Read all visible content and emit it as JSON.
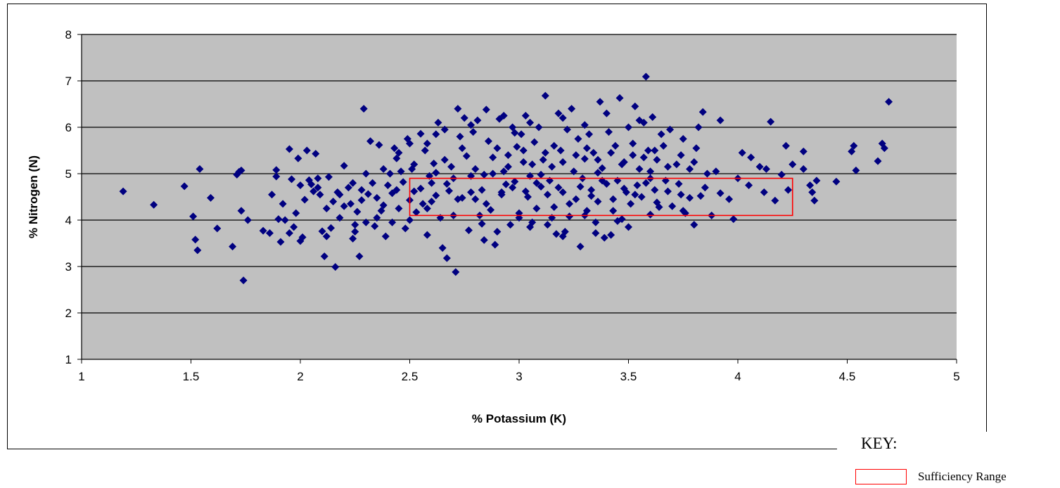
{
  "chart_data": {
    "type": "scatter",
    "xlabel": "% Potassium (K)",
    "ylabel": "% Nitrogen (N)",
    "xlim": [
      1,
      5
    ],
    "ylim": [
      1,
      8
    ],
    "x_ticks": [
      "1",
      "1.5",
      "2",
      "2.5",
      "3",
      "3.5",
      "4",
      "4.5",
      "5"
    ],
    "y_ticks": [
      "1",
      "2",
      "3",
      "4",
      "5",
      "6",
      "7",
      "8"
    ],
    "grid": "horizontal",
    "plot_background": "#c0c0c0",
    "marker_color": "#000080",
    "marker_shape": "diamond",
    "sufficiency_range": {
      "x": [
        2.5,
        4.25
      ],
      "y": [
        4.1,
        4.9
      ],
      "color": "#ff0000"
    },
    "points": [
      [
        1.19,
        4.62
      ],
      [
        1.33,
        4.33
      ],
      [
        1.47,
        4.73
      ],
      [
        1.51,
        4.08
      ],
      [
        1.52,
        3.58
      ],
      [
        1.53,
        3.35
      ],
      [
        1.54,
        5.1
      ],
      [
        1.59,
        4.48
      ],
      [
        1.62,
        3.82
      ],
      [
        1.69,
        3.43
      ],
      [
        1.71,
        4.98
      ],
      [
        1.72,
        5.04
      ],
      [
        1.73,
        4.2
      ],
      [
        1.73,
        5.07
      ],
      [
        1.74,
        2.7
      ],
      [
        1.76,
        4.0
      ],
      [
        1.83,
        3.77
      ],
      [
        1.86,
        3.72
      ],
      [
        1.87,
        4.55
      ],
      [
        1.89,
        4.94
      ],
      [
        1.89,
        5.08
      ],
      [
        1.9,
        4.02
      ],
      [
        1.91,
        3.53
      ],
      [
        1.92,
        4.35
      ],
      [
        1.93,
        4.0
      ],
      [
        1.95,
        5.53
      ],
      [
        1.96,
        4.88
      ],
      [
        1.97,
        3.85
      ],
      [
        1.98,
        4.15
      ],
      [
        1.99,
        5.33
      ],
      [
        2.0,
        3.55
      ],
      [
        2.01,
        3.63
      ],
      [
        2.02,
        4.44
      ],
      [
        2.03,
        5.5
      ],
      [
        2.04,
        4.86
      ],
      [
        2.05,
        4.77
      ],
      [
        2.06,
        4.62
      ],
      [
        2.07,
        5.43
      ],
      [
        2.08,
        4.7
      ],
      [
        2.09,
        4.55
      ],
      [
        2.1,
        3.76
      ],
      [
        2.11,
        3.22
      ],
      [
        2.12,
        4.25
      ],
      [
        2.13,
        4.93
      ],
      [
        2.14,
        3.83
      ],
      [
        2.15,
        4.4
      ],
      [
        2.16,
        2.99
      ],
      [
        2.17,
        4.6
      ],
      [
        2.18,
        4.05
      ],
      [
        2.2,
        5.17
      ],
      [
        2.22,
        4.7
      ],
      [
        2.23,
        4.35
      ],
      [
        2.24,
        3.6
      ],
      [
        2.25,
        3.75
      ],
      [
        2.26,
        4.18
      ],
      [
        2.27,
        3.22
      ],
      [
        2.28,
        4.43
      ],
      [
        2.29,
        6.4
      ],
      [
        2.3,
        3.95
      ],
      [
        2.31,
        4.56
      ],
      [
        2.32,
        5.7
      ],
      [
        2.33,
        4.8
      ],
      [
        2.34,
        3.87
      ],
      [
        2.35,
        4.48
      ],
      [
        2.36,
        5.62
      ],
      [
        2.37,
        4.2
      ],
      [
        2.38,
        4.32
      ],
      [
        2.39,
        3.65
      ],
      [
        2.4,
        4.75
      ],
      [
        2.41,
        5.0
      ],
      [
        2.42,
        4.58
      ],
      [
        2.43,
        5.55
      ],
      [
        2.44,
        5.33
      ],
      [
        2.45,
        4.25
      ],
      [
        2.46,
        5.05
      ],
      [
        2.47,
        4.82
      ],
      [
        2.48,
        3.82
      ],
      [
        2.49,
        5.75
      ],
      [
        2.5,
        4.43
      ],
      [
        2.51,
        5.1
      ],
      [
        2.52,
        4.62
      ],
      [
        2.53,
        4.17
      ],
      [
        2.55,
        5.86
      ],
      [
        2.56,
        4.35
      ],
      [
        2.57,
        5.5
      ],
      [
        2.58,
        3.68
      ],
      [
        2.59,
        4.95
      ],
      [
        2.6,
        4.8
      ],
      [
        2.61,
        5.22
      ],
      [
        2.62,
        4.53
      ],
      [
        2.63,
        6.1
      ],
      [
        2.64,
        4.05
      ],
      [
        2.65,
        3.4
      ],
      [
        2.66,
        5.95
      ],
      [
        2.67,
        3.18
      ],
      [
        2.68,
        4.63
      ],
      [
        2.69,
        5.15
      ],
      [
        2.7,
        4.9
      ],
      [
        2.71,
        2.88
      ],
      [
        2.72,
        6.4
      ],
      [
        2.73,
        5.8
      ],
      [
        2.74,
        4.48
      ],
      [
        2.75,
        6.2
      ],
      [
        2.76,
        5.38
      ],
      [
        2.77,
        3.78
      ],
      [
        2.78,
        4.95
      ],
      [
        2.79,
        5.9
      ],
      [
        2.8,
        4.45
      ],
      [
        2.81,
        6.15
      ],
      [
        2.82,
        4.1
      ],
      [
        2.83,
        4.65
      ],
      [
        2.84,
        3.57
      ],
      [
        2.85,
        6.38
      ],
      [
        2.86,
        5.7
      ],
      [
        2.87,
        4.22
      ],
      [
        2.88,
        5.0
      ],
      [
        2.89,
        3.47
      ],
      [
        2.9,
        5.55
      ],
      [
        2.91,
        6.18
      ],
      [
        2.92,
        4.6
      ],
      [
        2.93,
        5.05
      ],
      [
        2.94,
        4.77
      ],
      [
        2.95,
        5.4
      ],
      [
        2.96,
        3.9
      ],
      [
        2.97,
        6.0
      ],
      [
        2.98,
        4.83
      ],
      [
        2.99,
        5.58
      ],
      [
        3.0,
        4.05
      ],
      [
        3.01,
        5.85
      ],
      [
        3.02,
        5.25
      ],
      [
        3.03,
        6.25
      ],
      [
        3.04,
        4.5
      ],
      [
        3.05,
        4.95
      ],
      [
        3.06,
        3.95
      ],
      [
        3.07,
        5.68
      ],
      [
        3.08,
        4.25
      ],
      [
        3.09,
        6.0
      ],
      [
        3.1,
        4.72
      ],
      [
        3.11,
        5.3
      ],
      [
        3.12,
        6.68
      ],
      [
        3.13,
        3.9
      ],
      [
        3.14,
        4.85
      ],
      [
        3.15,
        5.15
      ],
      [
        3.16,
        4.28
      ],
      [
        3.17,
        3.7
      ],
      [
        3.18,
        6.3
      ],
      [
        3.19,
        5.5
      ],
      [
        3.2,
        4.6
      ],
      [
        3.21,
        3.75
      ],
      [
        3.22,
        5.95
      ],
      [
        3.23,
        4.08
      ],
      [
        3.24,
        6.4
      ],
      [
        3.25,
        5.05
      ],
      [
        3.26,
        4.45
      ],
      [
        3.27,
        5.75
      ],
      [
        3.28,
        3.43
      ],
      [
        3.29,
        4.9
      ],
      [
        3.3,
        5.32
      ],
      [
        3.31,
        4.2
      ],
      [
        3.32,
        5.85
      ],
      [
        3.33,
        4.65
      ],
      [
        3.34,
        5.45
      ],
      [
        3.35,
        3.95
      ],
      [
        3.36,
        4.4
      ],
      [
        3.37,
        6.55
      ],
      [
        3.38,
        5.12
      ],
      [
        3.39,
        3.62
      ],
      [
        3.4,
        4.78
      ],
      [
        3.41,
        5.9
      ],
      [
        3.42,
        3.68
      ],
      [
        3.43,
        4.2
      ],
      [
        3.44,
        5.6
      ],
      [
        3.45,
        4.85
      ],
      [
        3.46,
        6.63
      ],
      [
        3.47,
        4.02
      ],
      [
        3.48,
        5.25
      ],
      [
        3.49,
        4.6
      ],
      [
        3.5,
        6.0
      ],
      [
        3.51,
        4.35
      ],
      [
        3.52,
        5.4
      ],
      [
        3.53,
        6.45
      ],
      [
        3.54,
        4.75
      ],
      [
        3.55,
        5.1
      ],
      [
        3.56,
        4.5
      ],
      [
        3.57,
        6.1
      ],
      [
        3.58,
        7.09
      ],
      [
        3.59,
        5.5
      ],
      [
        3.6,
        4.9
      ],
      [
        3.61,
        6.22
      ],
      [
        3.62,
        4.65
      ],
      [
        3.63,
        5.3
      ],
      [
        3.64,
        4.28
      ],
      [
        3.66,
        5.6
      ],
      [
        3.67,
        4.85
      ],
      [
        3.69,
        5.95
      ],
      [
        3.7,
        4.3
      ],
      [
        3.72,
        5.2
      ],
      [
        3.74,
        4.55
      ],
      [
        3.75,
        5.75
      ],
      [
        3.76,
        4.15
      ],
      [
        3.78,
        5.1
      ],
      [
        3.8,
        3.9
      ],
      [
        3.81,
        5.55
      ],
      [
        3.82,
        6.0
      ],
      [
        3.83,
        4.52
      ],
      [
        3.84,
        6.33
      ],
      [
        3.86,
        5.0
      ],
      [
        3.88,
        4.1
      ],
      [
        3.92,
        6.15
      ],
      [
        3.96,
        4.45
      ],
      [
        3.98,
        4.02
      ],
      [
        4.0,
        4.9
      ],
      [
        4.02,
        5.45
      ],
      [
        4.06,
        5.35
      ],
      [
        4.1,
        5.15
      ],
      [
        4.13,
        5.1
      ],
      [
        4.15,
        6.12
      ],
      [
        4.17,
        4.42
      ],
      [
        4.2,
        4.98
      ],
      [
        4.22,
        5.6
      ],
      [
        4.23,
        4.65
      ],
      [
        4.25,
        5.2
      ],
      [
        4.3,
        5.48
      ],
      [
        4.3,
        5.1
      ],
      [
        4.33,
        4.75
      ],
      [
        4.34,
        4.6
      ],
      [
        4.35,
        4.42
      ],
      [
        4.36,
        4.85
      ],
      [
        4.45,
        4.83
      ],
      [
        4.52,
        5.48
      ],
      [
        4.53,
        5.6
      ],
      [
        4.54,
        5.07
      ],
      [
        4.64,
        5.27
      ],
      [
        4.66,
        5.65
      ],
      [
        4.67,
        5.55
      ],
      [
        4.69,
        6.55
      ],
      [
        2.55,
        4.68
      ],
      [
        2.6,
        4.4
      ],
      [
        2.67,
        4.78
      ],
      [
        2.72,
        4.45
      ],
      [
        2.78,
        4.6
      ],
      [
        2.85,
        4.35
      ],
      [
        2.92,
        4.55
      ],
      [
        2.97,
        4.7
      ],
      [
        3.03,
        4.62
      ],
      [
        3.08,
        4.8
      ],
      [
        3.13,
        4.55
      ],
      [
        3.18,
        4.7
      ],
      [
        3.23,
        4.35
      ],
      [
        3.28,
        4.72
      ],
      [
        3.33,
        4.52
      ],
      [
        3.38,
        4.85
      ],
      [
        3.43,
        4.45
      ],
      [
        3.48,
        4.68
      ],
      [
        3.53,
        4.55
      ],
      [
        3.58,
        4.8
      ],
      [
        3.63,
        4.38
      ],
      [
        3.68,
        4.62
      ],
      [
        3.73,
        4.78
      ],
      [
        3.78,
        4.48
      ],
      [
        3.85,
        4.7
      ],
      [
        3.92,
        4.58
      ],
      [
        4.05,
        4.75
      ],
      [
        4.12,
        4.6
      ],
      [
        2.45,
        5.45
      ],
      [
        2.52,
        5.2
      ],
      [
        2.58,
        5.65
      ],
      [
        2.66,
        5.3
      ],
      [
        2.74,
        5.55
      ],
      [
        2.8,
        5.1
      ],
      [
        2.88,
        5.35
      ],
      [
        2.95,
        5.15
      ],
      [
        3.02,
        5.5
      ],
      [
        3.06,
        5.2
      ],
      [
        3.12,
        5.45
      ],
      [
        3.16,
        5.6
      ],
      [
        3.2,
        5.25
      ],
      [
        3.26,
        5.4
      ],
      [
        3.31,
        5.55
      ],
      [
        3.36,
        5.3
      ],
      [
        3.42,
        5.45
      ],
      [
        3.47,
        5.2
      ],
      [
        3.52,
        5.65
      ],
      [
        3.57,
        5.35
      ],
      [
        3.62,
        5.5
      ],
      [
        3.68,
        5.15
      ],
      [
        3.74,
        5.4
      ],
      [
        3.8,
        5.25
      ],
      [
        2.38,
        5.1
      ],
      [
        2.3,
        5.0
      ],
      [
        2.24,
        4.8
      ],
      [
        2.18,
        4.55
      ],
      [
        2.08,
        4.9
      ],
      [
        2.0,
        4.75
      ],
      [
        2.35,
        4.05
      ],
      [
        2.42,
        3.95
      ],
      [
        2.5,
        4.0
      ],
      [
        2.58,
        4.25
      ],
      [
        2.7,
        4.1
      ],
      [
        2.83,
        3.92
      ],
      [
        3.0,
        4.15
      ],
      [
        3.15,
        4.05
      ],
      [
        3.3,
        4.1
      ],
      [
        3.45,
        3.98
      ],
      [
        3.6,
        4.12
      ],
      [
        3.75,
        4.2
      ],
      [
        2.9,
        3.75
      ],
      [
        3.05,
        3.85
      ],
      [
        3.2,
        3.65
      ],
      [
        3.35,
        3.72
      ],
      [
        3.5,
        3.85
      ],
      [
        2.25,
        3.9
      ],
      [
        2.12,
        3.65
      ],
      [
        1.95,
        3.72
      ],
      [
        2.78,
        6.05
      ],
      [
        2.93,
        6.25
      ],
      [
        3.05,
        6.1
      ],
      [
        3.2,
        6.2
      ],
      [
        3.3,
        6.05
      ],
      [
        3.4,
        6.3
      ],
      [
        3.55,
        6.15
      ],
      [
        3.65,
        5.85
      ],
      [
        2.62,
        5.85
      ],
      [
        2.5,
        5.65
      ],
      [
        2.84,
        4.98
      ],
      [
        3.1,
        4.98
      ],
      [
        3.36,
        5.02
      ],
      [
        3.6,
        5.05
      ],
      [
        3.9,
        5.05
      ],
      [
        2.2,
        4.3
      ],
      [
        2.28,
        4.65
      ],
      [
        2.44,
        4.65
      ],
      [
        2.62,
        5.02
      ],
      [
        2.98,
        5.88
      ]
    ]
  },
  "key": {
    "title": "KEY:",
    "label": "Sufficiency Range"
  }
}
